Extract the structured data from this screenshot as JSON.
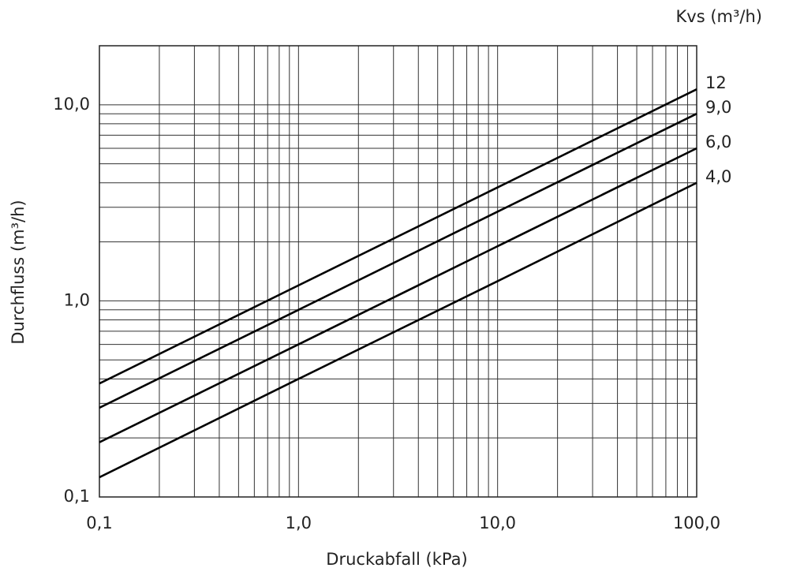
{
  "chart_data": {
    "type": "line",
    "x_label": "Druckabfall (kPa)",
    "y_label": "Durchfluss (m³/h)",
    "legend_title": "Kvs (m³/h)",
    "x": [
      0.1,
      1,
      10,
      100
    ],
    "series": [
      {
        "name": "12",
        "color": "#000000",
        "values": [
          0.379,
          1.2,
          3.79,
          12
        ]
      },
      {
        "name": "9,0",
        "color": "#000000",
        "values": [
          0.285,
          0.9,
          2.85,
          9
        ]
      },
      {
        "name": "6,0",
        "color": "#000000",
        "values": [
          0.19,
          0.6,
          1.9,
          6
        ]
      },
      {
        "name": "4,0",
        "color": "#000000",
        "values": [
          0.126,
          0.4,
          1.26,
          4
        ]
      }
    ],
    "xscale": "log",
    "yscale": "log",
    "xlim": [
      0.1,
      100
    ],
    "ylim": [
      0.1,
      20
    ],
    "xticks": [
      {
        "value": 0.1,
        "label": "0,1"
      },
      {
        "value": 1,
        "label": "1,0"
      },
      {
        "value": 10,
        "label": "10,0"
      },
      {
        "value": 100,
        "label": "100,0"
      }
    ],
    "yticks": [
      {
        "value": 0.1,
        "label": "0,1"
      },
      {
        "value": 1,
        "label": "1,0"
      },
      {
        "value": 10,
        "label": "10,0"
      }
    ],
    "xgrid": [
      0.2,
      0.3,
      0.4,
      0.5,
      0.6,
      0.7,
      0.8,
      0.9,
      2,
      3,
      4,
      5,
      6,
      7,
      8,
      9,
      20,
      30,
      40,
      50,
      60,
      70,
      80,
      90
    ],
    "ygrid": [
      0.2,
      0.3,
      0.4,
      0.5,
      0.6,
      0.7,
      0.8,
      0.9,
      2,
      3,
      4,
      5,
      6,
      7,
      8,
      9
    ],
    "grid": true
  }
}
